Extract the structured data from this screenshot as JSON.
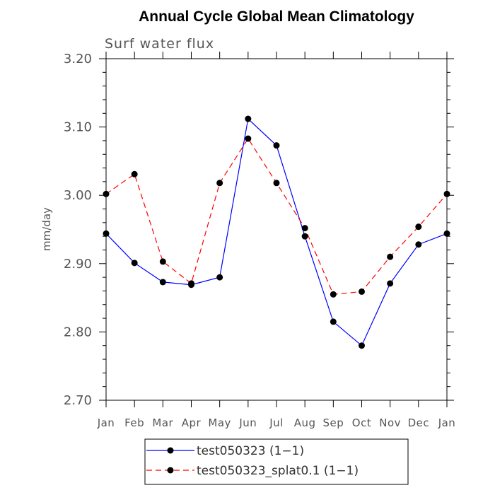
{
  "chart_data": {
    "type": "line",
    "title": "Annual Cycle Global Mean Climatology",
    "subtitle": "Surf water flux",
    "xlabel": "",
    "ylabel": "mm/day",
    "categories": [
      "Jan",
      "Feb",
      "Mar",
      "Apr",
      "May",
      "Jun",
      "Jul",
      "Aug",
      "Sep",
      "Oct",
      "Nov",
      "Dec",
      "Jan"
    ],
    "ylim": [
      2.7,
      3.2
    ],
    "yticks": [
      "2.70",
      "2.80",
      "2.90",
      "3.00",
      "3.10",
      "3.20"
    ],
    "grid": false,
    "legend_position": "bottom",
    "series": [
      {
        "name": "test050323 (1−1)",
        "color": "#0000ff",
        "style": "solid",
        "values": [
          2.944,
          2.901,
          2.873,
          2.869,
          2.88,
          3.112,
          3.073,
          2.94,
          2.815,
          2.78,
          2.871,
          2.928,
          2.944
        ]
      },
      {
        "name": "test050323_splat0.1 (1−1)",
        "color": "#ff0000",
        "style": "dashed",
        "values": [
          3.002,
          3.031,
          2.903,
          2.871,
          3.018,
          3.083,
          3.018,
          2.952,
          2.855,
          2.859,
          2.91,
          2.954,
          3.002
        ]
      }
    ]
  }
}
